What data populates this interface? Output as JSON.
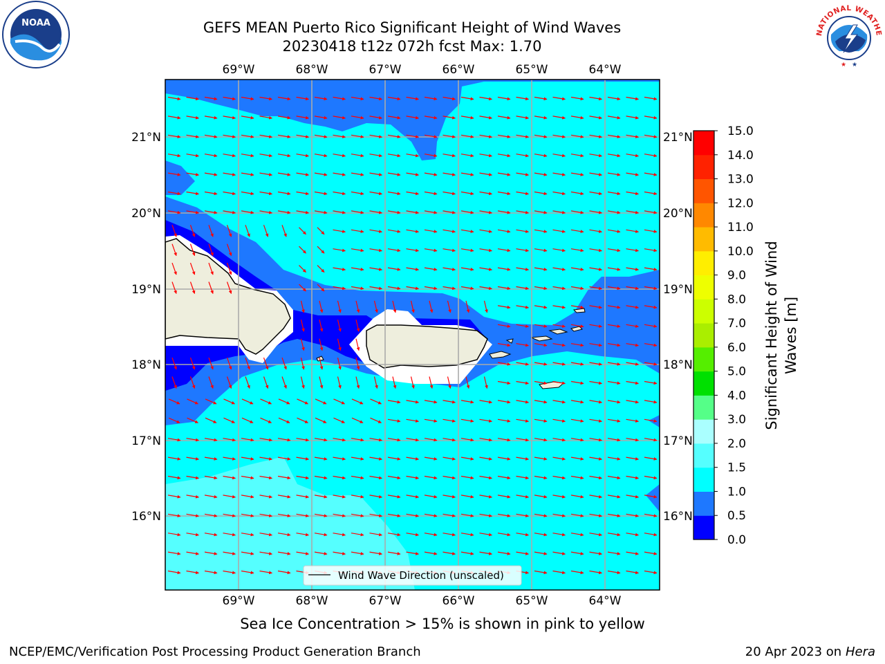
{
  "header": {
    "title": "GEFS MEAN Puerto Rico Significant Height of Wind Waves",
    "subtitle": "20230418 t12z 072h fcst   Max: 1.70"
  },
  "logos": {
    "left": "noaa-logo",
    "right": "nws-logo",
    "left_text": "NOAA",
    "right_text": "NATIONAL WEATHER SERVICE"
  },
  "map": {
    "lon_labels": [
      "69°W",
      "68°W",
      "67°W",
      "66°W",
      "65°W",
      "64°W"
    ],
    "lat_labels": [
      "21°N",
      "20°N",
      "19°N",
      "18°N",
      "17°N",
      "16°N"
    ],
    "legend_label": "Wind Wave Direction (unscaled)",
    "ocean_color": "#00ffff",
    "land_color": "#eeeedd",
    "arrow_color": "#ff0000",
    "grid_color": "#aaaaaa"
  },
  "colorbar": {
    "title_line1": "Significant Height of Wind",
    "title_line2": "Waves [m]",
    "ticks": [
      "0.0",
      "0.5",
      "1.0",
      "1.5",
      "2.0",
      "3.0",
      "4.0",
      "5.0",
      "6.0",
      "7.0",
      "8.0",
      "9.0",
      "10.0",
      "11.0",
      "12.0",
      "13.0",
      "14.0",
      "15.0"
    ],
    "colors": [
      "#0000ff",
      "#1e78ff",
      "#00ffff",
      "#55ffff",
      "#aaffff",
      "#55ff88",
      "#00e000",
      "#55ee00",
      "#aaee00",
      "#ccff00",
      "#eeff00",
      "#ffee00",
      "#ffbb00",
      "#ff8800",
      "#ff5500",
      "#ff2200",
      "#ff0000"
    ]
  },
  "caption": "Sea Ice Concentration > 15% is shown in pink to yellow",
  "footer": {
    "left": "NCEP/EMC/Verification Post Processing Product Generation Branch",
    "right_date": "20 Apr 2023 on ",
    "right_host": "Hera"
  }
}
